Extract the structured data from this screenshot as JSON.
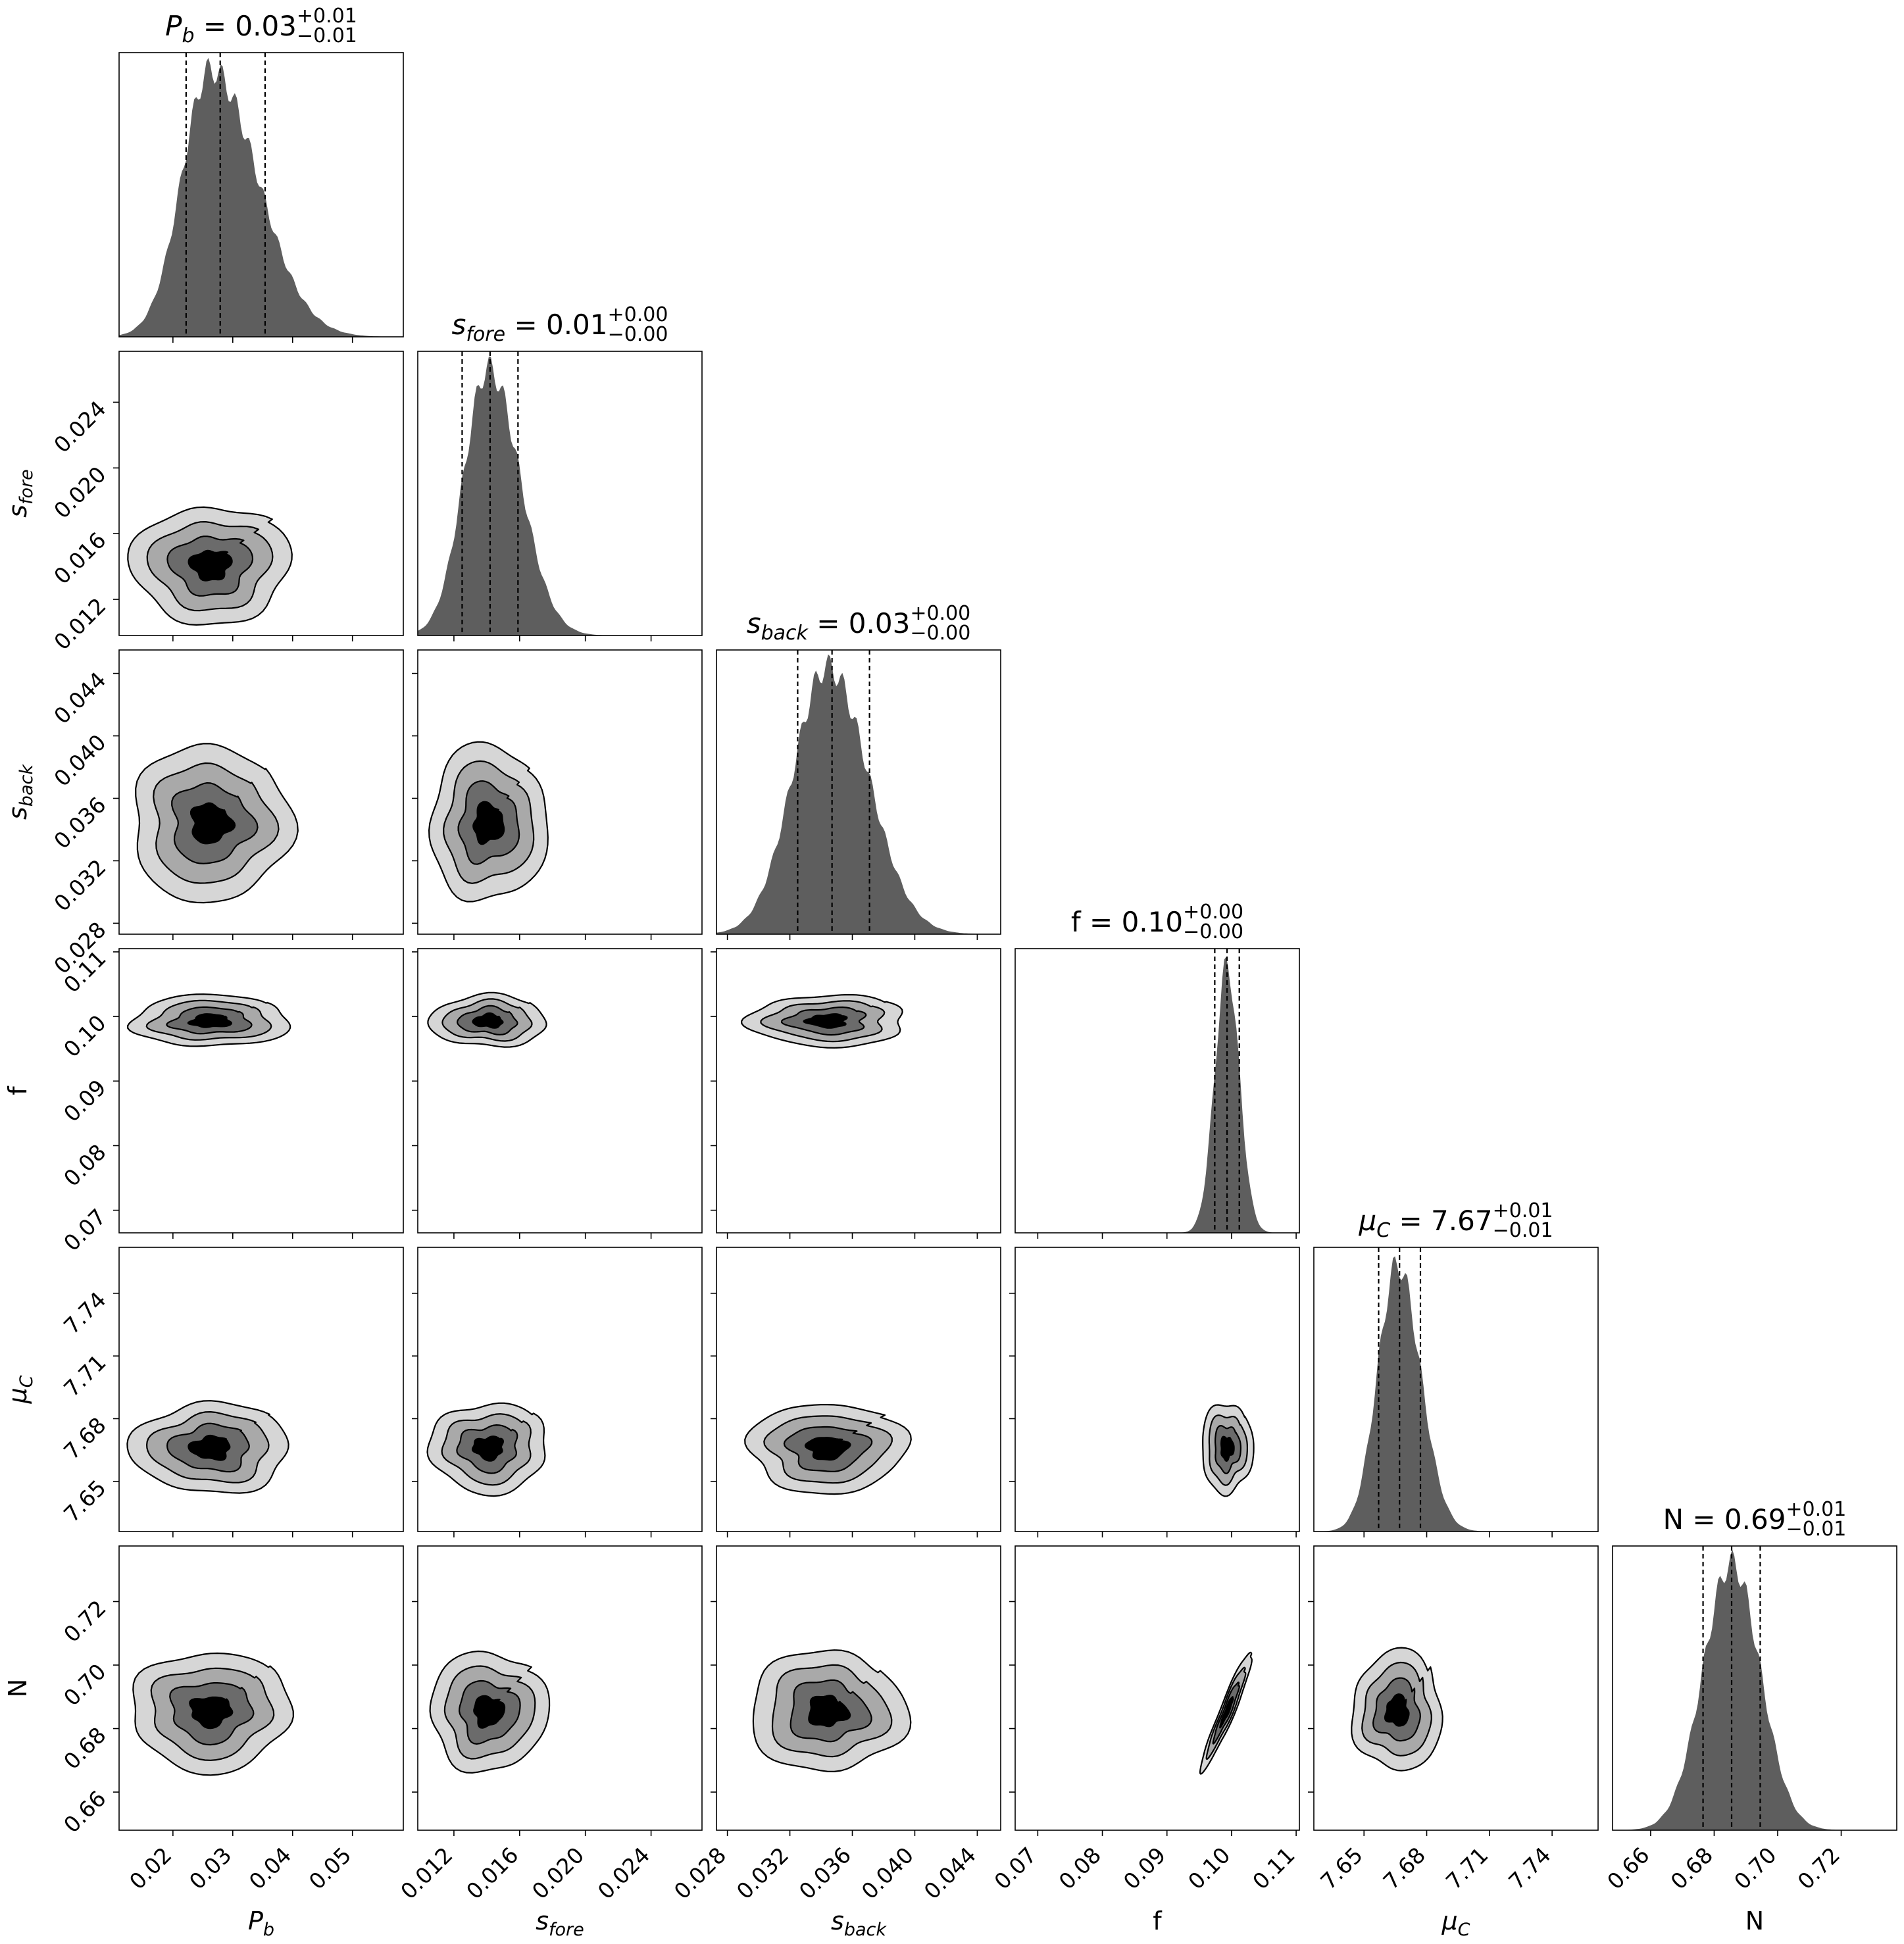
{
  "chart_data": {
    "type": "corner",
    "colors": {
      "hist": "#5e5e5e",
      "level1": "#d6d6d6",
      "level2": "#a9a9a9",
      "level3": "#6b6b6b",
      "core": "#000000",
      "quantile_line": "#000000"
    },
    "parameters": [
      {
        "key": "Pb",
        "label_base": "P",
        "label_sub": "b",
        "title_value": "0.03",
        "title_plus": "+0.01",
        "title_minus": "−0.01",
        "range": [
          0.011,
          0.0585
        ],
        "ticks": [
          0.02,
          0.03,
          0.04,
          0.05
        ],
        "tick_labels": [
          "0.02",
          "0.03",
          "0.04",
          "0.05"
        ],
        "quantiles": [
          0.0222,
          0.0279,
          0.0354
        ],
        "peak": 0.0263,
        "sd_left": 0.0048,
        "sd_right": 0.0078
      },
      {
        "key": "sfore",
        "label_base": "s",
        "label_sub": "fore",
        "title_value": "0.01",
        "title_plus": "+0.00",
        "title_minus": "−0.00",
        "range": [
          0.0098,
          0.0271
        ],
        "ticks": [
          0.012,
          0.016,
          0.02,
          0.024
        ],
        "tick_labels": [
          "0.012",
          "0.016",
          "0.020",
          "0.024"
        ],
        "quantiles": [
          0.0125,
          0.0142,
          0.0159
        ],
        "peak": 0.0141,
        "sd_left": 0.0015,
        "sd_right": 0.0019
      },
      {
        "key": "sback",
        "label_base": "s",
        "label_sub": "back",
        "title_value": "0.03",
        "title_plus": "+0.00",
        "title_minus": "−0.00",
        "range": [
          0.0273,
          0.0455
        ],
        "ticks": [
          0.028,
          0.032,
          0.036,
          0.04,
          0.044
        ],
        "tick_labels": [
          "0.028",
          "0.032",
          "0.036",
          "0.040",
          "0.044"
        ],
        "quantiles": [
          0.0325,
          0.0347,
          0.0371
        ],
        "peak": 0.0344,
        "sd_left": 0.0022,
        "sd_right": 0.0026
      },
      {
        "key": "f",
        "label_base": "f",
        "label_sub": "",
        "title_value": "0.10",
        "title_plus": "+0.00",
        "title_minus": "−0.00",
        "range": [
          0.0665,
          0.1105
        ],
        "ticks": [
          0.07,
          0.08,
          0.09,
          0.1,
          0.11
        ],
        "tick_labels": [
          "0.07",
          "0.08",
          "0.09",
          "0.10",
          "0.11"
        ],
        "quantiles": [
          0.0974,
          0.0993,
          0.1012
        ],
        "peak": 0.0993,
        "sd_left": 0.0019,
        "sd_right": 0.0019
      },
      {
        "key": "muC",
        "label_base": "μ",
        "label_sub": "C",
        "title_value": "7.67",
        "title_plus": "+0.01",
        "title_minus": "−0.01",
        "range": [
          7.626,
          7.762
        ],
        "ticks": [
          7.65,
          7.68,
          7.71,
          7.74
        ],
        "tick_labels": [
          "7.65",
          "7.68",
          "7.71",
          "7.74"
        ],
        "quantiles": [
          7.657,
          7.667,
          7.677
        ],
        "peak": 7.666,
        "sd_left": 0.0095,
        "sd_right": 0.011
      },
      {
        "key": "N",
        "label_base": "N",
        "label_sub": "",
        "title_value": "0.69",
        "title_plus": "+0.01",
        "title_minus": "−0.01",
        "range": [
          0.648,
          0.7375
        ],
        "ticks": [
          0.66,
          0.68,
          0.7,
          0.72
        ],
        "tick_labels": [
          "0.66",
          "0.68",
          "0.70",
          "0.72"
        ],
        "quantiles": [
          0.6765,
          0.6855,
          0.6945
        ],
        "peak": 0.6855,
        "sd_left": 0.009,
        "sd_right": 0.009
      }
    ],
    "correlations": [
      [
        0,
        0,
        0,
        0,
        0,
        0
      ],
      [
        0,
        0,
        0,
        0,
        0,
        0
      ],
      [
        0,
        0,
        0,
        0,
        0,
        0
      ],
      [
        0,
        0,
        0,
        0,
        0,
        0
      ],
      [
        0,
        0,
        0,
        0,
        0,
        0
      ],
      [
        0,
        0,
        0,
        0.95,
        0,
        0
      ]
    ],
    "contour_levels_sigma": [
      0.5,
      1.0,
      1.5,
      2.0
    ]
  }
}
